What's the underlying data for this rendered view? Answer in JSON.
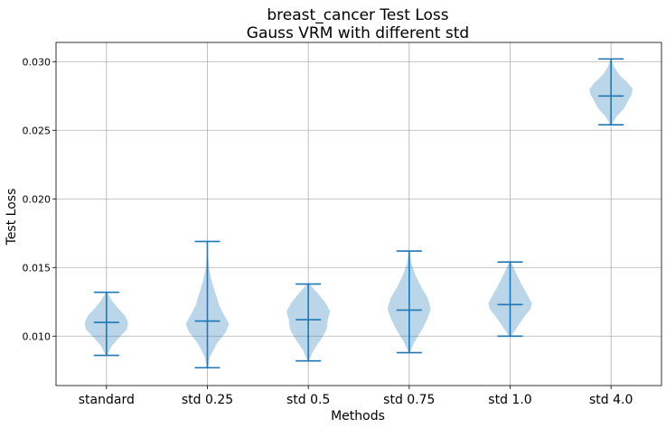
{
  "chart_data": {
    "type": "violin",
    "title_line1": "breast_cancer Test Loss",
    "title_line2": "Gauss VRM with different std",
    "xlabel": "Methods",
    "ylabel": "Test Loss",
    "ylim": [
      0.0064,
      0.0314
    ],
    "yticks": [
      0.01,
      0.015,
      0.02,
      0.025,
      0.03
    ],
    "ytick_labels": [
      "0.010",
      "0.015",
      "0.020",
      "0.025",
      "0.030"
    ],
    "grid": true,
    "color": "#1f77b4",
    "categories": [
      "standard",
      "std 0.25",
      "std 0.5",
      "std 0.75",
      "std 1.0",
      "std 4.0"
    ],
    "violins": [
      {
        "min": 0.0086,
        "max": 0.0132,
        "median": 0.011,
        "density": [
          [
            0.0086,
            0.03
          ],
          [
            0.0093,
            0.25
          ],
          [
            0.01,
            0.65
          ],
          [
            0.0105,
            0.95
          ],
          [
            0.011,
            1.0
          ],
          [
            0.0115,
            0.85
          ],
          [
            0.012,
            0.55
          ],
          [
            0.0126,
            0.25
          ],
          [
            0.0132,
            0.03
          ]
        ]
      },
      {
        "min": 0.0077,
        "max": 0.0169,
        "median": 0.0111,
        "density": [
          [
            0.0077,
            0.02
          ],
          [
            0.0085,
            0.12
          ],
          [
            0.0095,
            0.45
          ],
          [
            0.0103,
            0.85
          ],
          [
            0.0109,
            1.0
          ],
          [
            0.0116,
            0.75
          ],
          [
            0.0122,
            0.55
          ],
          [
            0.013,
            0.4
          ],
          [
            0.014,
            0.2
          ],
          [
            0.015,
            0.07
          ],
          [
            0.016,
            0.02
          ],
          [
            0.0169,
            0.01
          ]
        ]
      },
      {
        "min": 0.0082,
        "max": 0.0138,
        "median": 0.0112,
        "density": [
          [
            0.0082,
            0.03
          ],
          [
            0.009,
            0.25
          ],
          [
            0.0098,
            0.6
          ],
          [
            0.0105,
            0.85
          ],
          [
            0.0112,
            0.9
          ],
          [
            0.0118,
            1.0
          ],
          [
            0.0124,
            0.8
          ],
          [
            0.0131,
            0.45
          ],
          [
            0.0138,
            0.05
          ]
        ]
      },
      {
        "min": 0.0088,
        "max": 0.0162,
        "median": 0.0119,
        "density": [
          [
            0.0088,
            0.03
          ],
          [
            0.0096,
            0.25
          ],
          [
            0.0105,
            0.6
          ],
          [
            0.0113,
            0.85
          ],
          [
            0.012,
            1.0
          ],
          [
            0.0128,
            0.85
          ],
          [
            0.0136,
            0.55
          ],
          [
            0.0144,
            0.3
          ],
          [
            0.0153,
            0.1
          ],
          [
            0.0162,
            0.02
          ]
        ]
      },
      {
        "min": 0.01,
        "max": 0.0154,
        "median": 0.0123,
        "density": [
          [
            0.01,
            0.05
          ],
          [
            0.0107,
            0.35
          ],
          [
            0.0114,
            0.65
          ],
          [
            0.012,
            0.95
          ],
          [
            0.0124,
            1.0
          ],
          [
            0.013,
            0.8
          ],
          [
            0.0137,
            0.55
          ],
          [
            0.0145,
            0.3
          ],
          [
            0.0154,
            0.04
          ]
        ]
      },
      {
        "min": 0.0254,
        "max": 0.0302,
        "median": 0.0275,
        "density": [
          [
            0.0254,
            0.03
          ],
          [
            0.026,
            0.25
          ],
          [
            0.0266,
            0.6
          ],
          [
            0.0272,
            0.8
          ],
          [
            0.0276,
            0.95
          ],
          [
            0.028,
            1.0
          ],
          [
            0.0285,
            0.75
          ],
          [
            0.029,
            0.4
          ],
          [
            0.0296,
            0.15
          ],
          [
            0.0302,
            0.02
          ]
        ]
      }
    ]
  }
}
